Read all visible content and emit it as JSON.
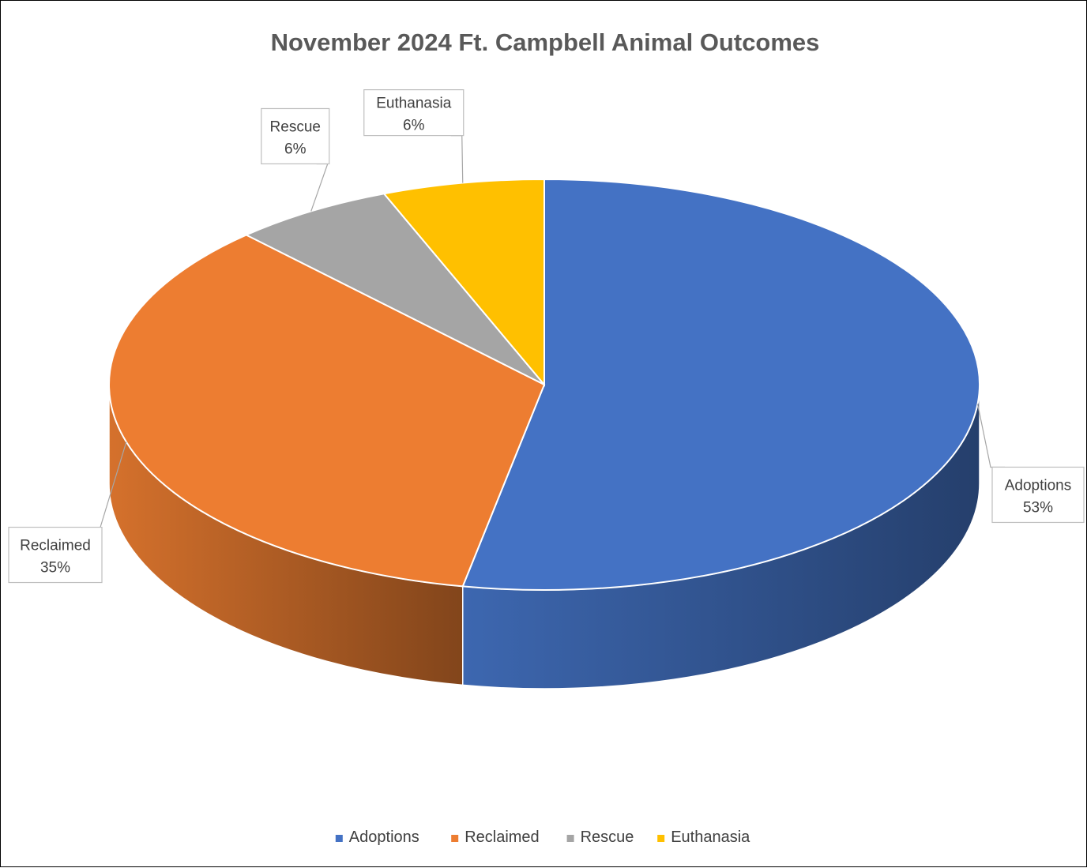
{
  "chart_data": {
    "type": "pie",
    "title": "November 2024 Ft. Campbell Animal Outcomes",
    "categories": [
      "Adoptions",
      "Reclaimed",
      "Rescue",
      "Euthanasia"
    ],
    "values": [
      53,
      35,
      6,
      6
    ],
    "value_labels": [
      "53%",
      "35%",
      "6%",
      "6%"
    ],
    "colors": [
      "#4472C4",
      "#ED7D31",
      "#A5A5A5",
      "#FFC000"
    ],
    "legend_position": "bottom",
    "style": "3d"
  }
}
